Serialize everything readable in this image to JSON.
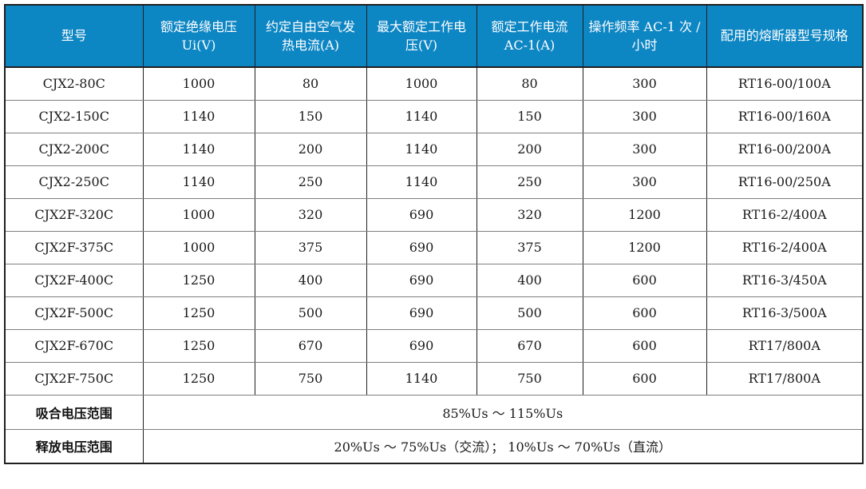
{
  "table": {
    "columns": [
      "型号",
      "额定绝缘电压 Ui(V)",
      "约定自由空气发热电流(A)",
      "最大额定工作电压(V)",
      "额定工作电流 AC-1(A)",
      "操作频率 AC-1 次 / 小时",
      "配用的熔断器型号规格"
    ],
    "rows": [
      {
        "cells": [
          "CJX2-80C",
          "1000",
          "80",
          "1000",
          "80",
          "300",
          "RT16-00/100A"
        ]
      },
      {
        "cells": [
          "CJX2-150C",
          "1140",
          "150",
          "1140",
          "150",
          "300",
          "RT16-00/160A"
        ]
      },
      {
        "cells": [
          "CJX2-200C",
          "1140",
          "200",
          "1140",
          "200",
          "300",
          "RT16-00/200A"
        ]
      },
      {
        "cells": [
          "CJX2-250C",
          "1140",
          "250",
          "1140",
          "250",
          "300",
          "RT16-00/250A"
        ]
      },
      {
        "cells": [
          "CJX2F-320C",
          "1000",
          "320",
          "690",
          "320",
          "1200",
          "RT16-2/400A"
        ]
      },
      {
        "cells": [
          "CJX2F-375C",
          "1000",
          "375",
          "690",
          "375",
          "1200",
          "RT16-2/400A"
        ]
      },
      {
        "cells": [
          "CJX2F-400C",
          "1250",
          "400",
          "690",
          "400",
          "600",
          "RT16-3/450A"
        ]
      },
      {
        "cells": [
          "CJX2F-500C",
          "1250",
          "500",
          "690",
          "500",
          "600",
          "RT16-3/500A"
        ]
      },
      {
        "cells": [
          "CJX2F-670C",
          "1250",
          "670",
          "690",
          "670",
          "600",
          "RT17/800A"
        ]
      },
      {
        "cells": [
          "CJX2F-750C",
          "1250",
          "750",
          "1140",
          "750",
          "600",
          "RT17/800A"
        ]
      }
    ],
    "footer_rows": [
      {
        "label": "吸合电压范围",
        "value": "85%Us ～ 115%Us"
      },
      {
        "label": "释放电压范围",
        "value": "20%Us ～ 75%Us（交流）； 10%Us ～ 70%Us（直流）"
      }
    ]
  },
  "colors": {
    "header_background": "#0d86c4",
    "header_text": "#ffffff",
    "outer_border": "#1f1f1f",
    "inner_gridline": "#7f7f7f",
    "cell_text": "#1a1a1a"
  }
}
